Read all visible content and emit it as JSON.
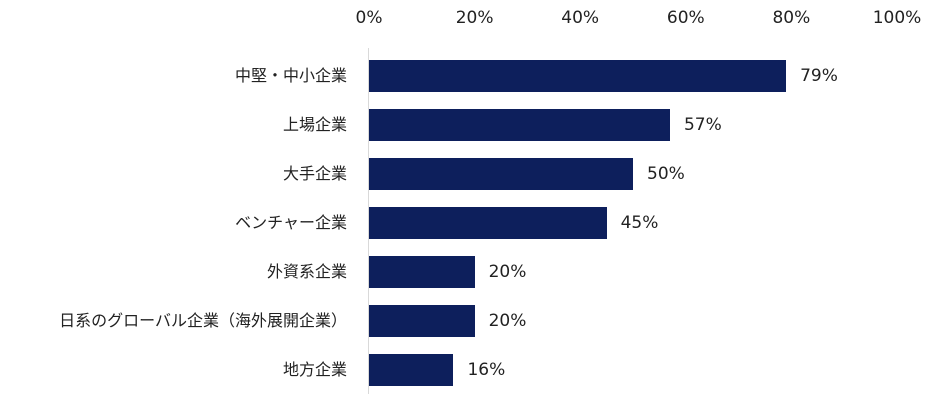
{
  "chart_data": {
    "type": "bar",
    "orientation": "horizontal",
    "title": "",
    "xlabel": "",
    "ylabel": "",
    "xlim": [
      0,
      100
    ],
    "x_ticks": [
      "0%",
      "20%",
      "40%",
      "60%",
      "80%",
      "100%"
    ],
    "grid": false,
    "legend": null,
    "bar_color": "#0d1f5c",
    "categories": [
      "中堅・中小企業",
      "上場企業",
      "大手企業",
      "ベンチャー企業",
      "外資系企業",
      "日系のグローバル企業（海外展開企業）",
      "地方企業"
    ],
    "values": [
      79,
      57,
      50,
      45,
      20,
      20,
      16
    ],
    "value_labels": [
      "79%",
      "57%",
      "50%",
      "45%",
      "20%",
      "20%",
      "16%"
    ]
  }
}
